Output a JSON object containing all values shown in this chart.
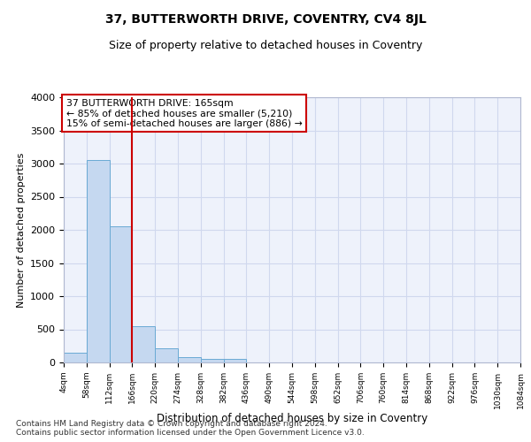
{
  "title": "37, BUTTERWORTH DRIVE, COVENTRY, CV4 8JL",
  "subtitle": "Size of property relative to detached houses in Coventry",
  "xlabel": "Distribution of detached houses by size in Coventry",
  "ylabel": "Number of detached properties",
  "bin_edges": [
    4,
    58,
    112,
    166,
    220,
    274,
    328,
    382,
    436,
    490,
    544,
    598,
    652,
    706,
    760,
    814,
    868,
    922,
    976,
    1030,
    1084
  ],
  "bar_heights": [
    150,
    3050,
    2050,
    550,
    220,
    75,
    55,
    50,
    0,
    0,
    0,
    0,
    0,
    0,
    0,
    0,
    0,
    0,
    0,
    0
  ],
  "bar_color": "#c5d8f0",
  "bar_edgecolor": "#6aaad4",
  "vline_x": 166,
  "vline_color": "#cc0000",
  "annotation_text": "37 BUTTERWORTH DRIVE: 165sqm\n← 85% of detached houses are smaller (5,210)\n15% of semi-detached houses are larger (886) →",
  "annotation_box_color": "white",
  "annotation_box_edgecolor": "#cc0000",
  "ylim": [
    0,
    4000
  ],
  "yticks": [
    0,
    500,
    1000,
    1500,
    2000,
    2500,
    3000,
    3500,
    4000
  ],
  "bg_color": "#eef2fb",
  "grid_color": "#d0d8ee",
  "title_fontsize": 10,
  "subtitle_fontsize": 9,
  "footer1": "Contains HM Land Registry data © Crown copyright and database right 2024.",
  "footer2": "Contains public sector information licensed under the Open Government Licence v3.0."
}
